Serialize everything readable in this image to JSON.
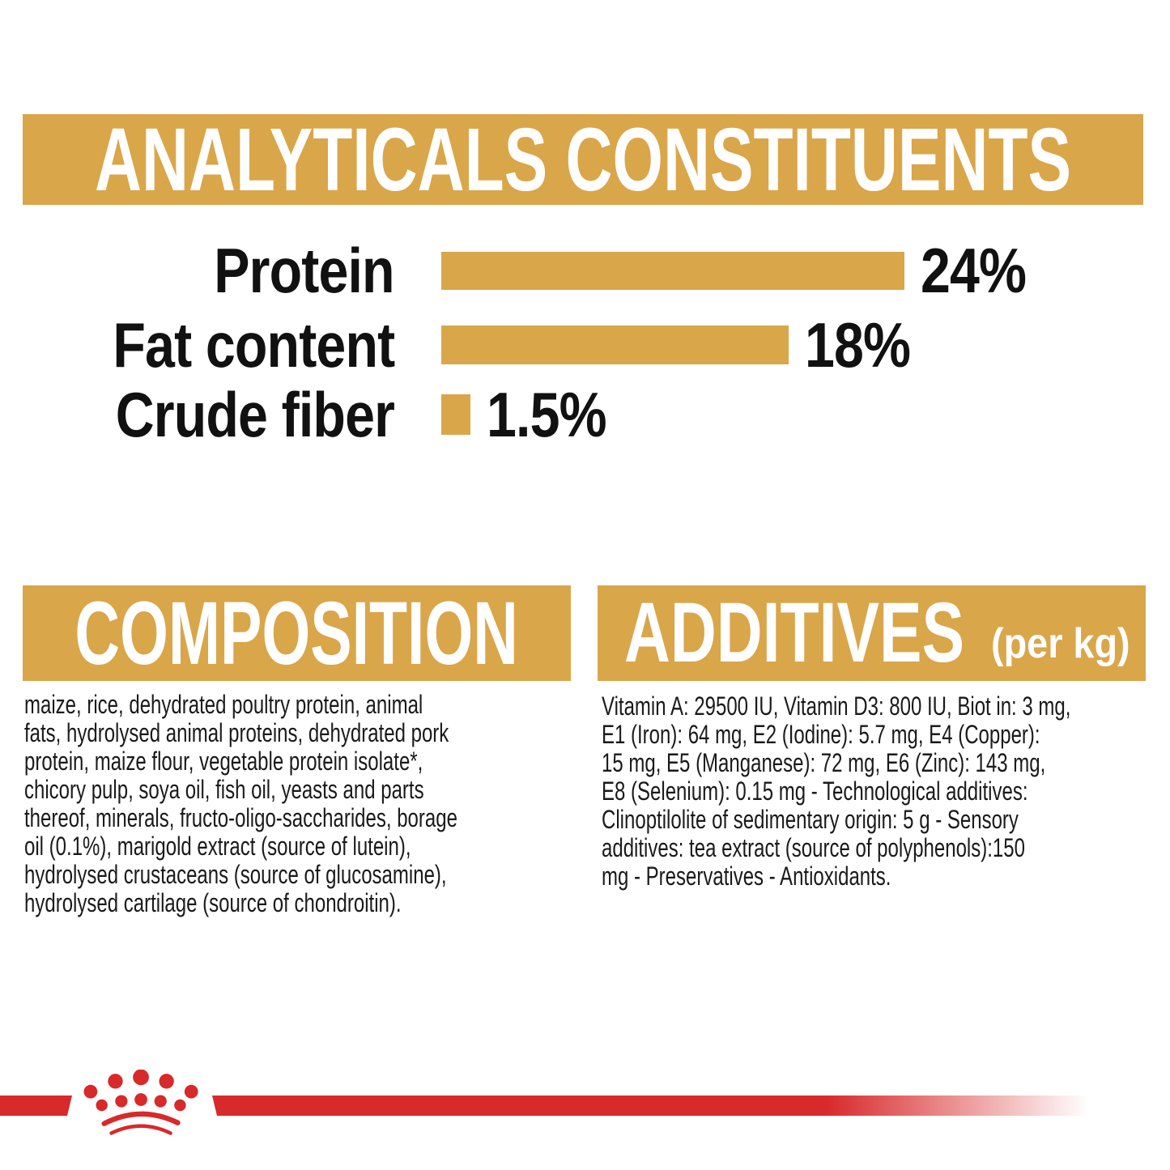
{
  "colors": {
    "gold": "#D9A64A",
    "red": "#D8292B",
    "text": "#1a1a1a",
    "title_text": "#ffffff"
  },
  "header": {
    "title": "ANALYTICALS CONSTITUENTS"
  },
  "chart_data": {
    "type": "bar",
    "orientation": "horizontal",
    "title": "ANALYTICALS CONSTITUENTS",
    "categories": [
      "Protein",
      "Fat content",
      "Crude fiber"
    ],
    "values": [
      24,
      18,
      1.5
    ],
    "value_labels": [
      "24%",
      "18%",
      "1.5%"
    ],
    "unit": "%",
    "xlim": [
      0,
      24
    ],
    "bar_color": "#D9A64A",
    "grid": false,
    "legend": false
  },
  "composition": {
    "title": "COMPOSITION",
    "last_line_justified": true,
    "lines": [
      "maize, rice, dehydrated poultry protein, animal",
      "fats, hydrolysed animal proteins, dehydrated pork",
      "protein, maize flour, vegetable protein isolate*,",
      "chicory pulp, soya oil, fish oil, yeasts and parts",
      "thereof, minerals, fructo-oligo-saccharides, borage",
      "oil (0.1%), marigold extract (source of lutein),",
      "hydrolysed crustaceans (source of glucosamine),",
      "hydrolysed cartilage (source of chondroitin)."
    ]
  },
  "additives": {
    "title": "ADDITIVES",
    "title_suffix": "(per kg)",
    "last_line_justified": false,
    "lines": [
      "Vitamin A: 29500 IU, Vitamin D3: 800 IU, Biot in: 3 mg,",
      "E1 (Iron): 64 mg, E2 (Iodine): 5.7 mg, E4 (Copper):",
      "15 mg, E5 (Manganese): 72 mg, E6 (Zinc): 143 mg,",
      "E8 (Selenium): 0.15 mg - Technological additives:",
      "Clinoptilolite of sedimentary origin: 5 g - Sensory",
      "additives: tea extract (source of polyphenols):150",
      "mg - Preservatives - Antioxidants."
    ]
  },
  "footer": {
    "brand_logo": "royal-canin-crown"
  }
}
